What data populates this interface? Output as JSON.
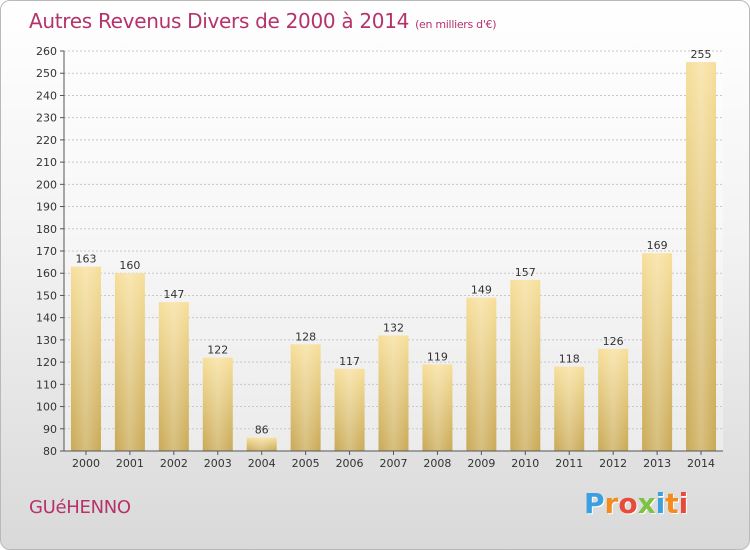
{
  "title": {
    "main": "Autres Revenus Divers de 2000 à 2014",
    "sub": "(en milliers d'€)"
  },
  "commune": "GUéHENNO",
  "logo": {
    "text": "Proxiti",
    "colors": [
      "#3aa0e0",
      "#f28c1e",
      "#e84b3c",
      "#7cc243",
      "#3aa0e0",
      "#f28c1e",
      "#e84b3c"
    ]
  },
  "colors": {
    "accent": "#b5336b",
    "bar_light": "#f7df9a",
    "bar_dark": "#c9a955",
    "grid": "#cccccc"
  },
  "chart_data": {
    "type": "bar",
    "title": "Autres Revenus Divers de 2000 à 2014",
    "subtitle": "(en milliers d'€)",
    "categories": [
      "2000",
      "2001",
      "2002",
      "2003",
      "2004",
      "2005",
      "2006",
      "2007",
      "2008",
      "2009",
      "2010",
      "2011",
      "2012",
      "2013",
      "2014"
    ],
    "values": [
      163,
      160,
      147,
      122,
      86,
      128,
      117,
      132,
      119,
      149,
      157,
      118,
      126,
      169,
      255
    ],
    "ylim": [
      80,
      260
    ],
    "yticks": [
      80,
      90,
      100,
      110,
      120,
      130,
      140,
      150,
      160,
      170,
      180,
      190,
      200,
      210,
      220,
      230,
      240,
      250,
      260
    ],
    "grid": true,
    "xlabel": "",
    "ylabel": ""
  }
}
